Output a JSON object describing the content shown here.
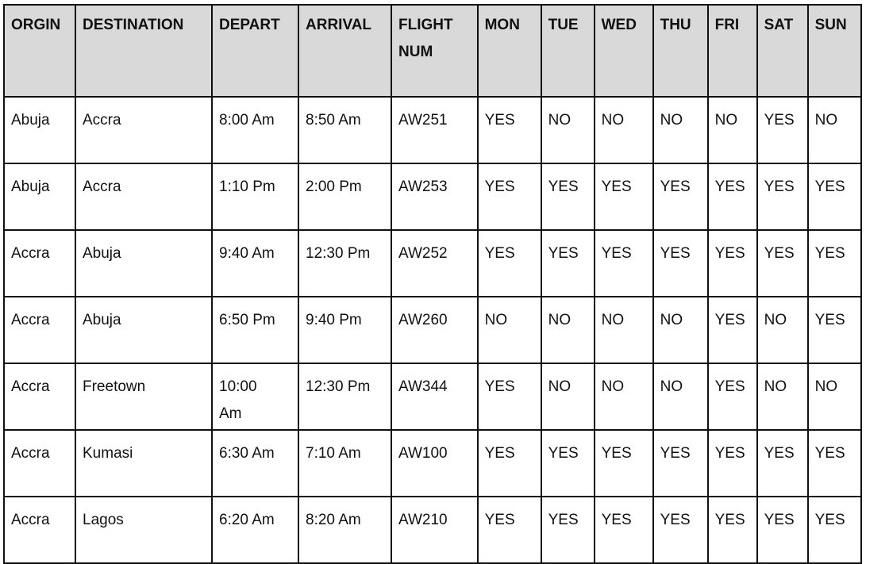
{
  "header_bg": "#d9d9d9",
  "headers": [
    "ORGIN",
    "DESTINATION",
    "DEPART",
    "ARRIVAL",
    "FLIGHT NUM",
    "MON",
    "TUE",
    "WED",
    "THU",
    "FRI",
    "SAT",
    "SUN"
  ],
  "rows": [
    [
      "Abuja",
      "Accra",
      "8:00 Am",
      "8:50 Am",
      "AW251",
      "YES",
      "NO",
      "NO",
      "NO",
      "NO",
      "YES",
      "NO"
    ],
    [
      "Abuja",
      "Accra",
      "1:10 Pm",
      "2:00 Pm",
      "AW253",
      "YES",
      "YES",
      "YES",
      "YES",
      "YES",
      "YES",
      "YES"
    ],
    [
      "Accra",
      "Abuja",
      "9:40 Am",
      "12:30 Pm",
      "AW252",
      "YES",
      "YES",
      "YES",
      "YES",
      "YES",
      "YES",
      "YES"
    ],
    [
      "Accra",
      "Abuja",
      "6:50 Pm",
      "9:40 Pm",
      "AW260",
      "NO",
      "NO",
      "NO",
      "NO",
      "YES",
      "NO",
      "YES"
    ],
    [
      "Accra",
      "Freetown",
      "10:00 Am",
      "12:30 Pm",
      "AW344",
      "YES",
      "NO",
      "NO",
      "NO",
      "YES",
      "NO",
      "NO"
    ],
    [
      "Accra",
      "Kumasi",
      "6:30 Am",
      "7:10 Am",
      "AW100",
      "YES",
      "YES",
      "YES",
      "YES",
      "YES",
      "YES",
      "YES"
    ],
    [
      "Accra",
      "Lagos",
      "6:20 Am",
      "8:20 Am",
      "AW210",
      "YES",
      "YES",
      "YES",
      "YES",
      "YES",
      "YES",
      "YES"
    ]
  ]
}
